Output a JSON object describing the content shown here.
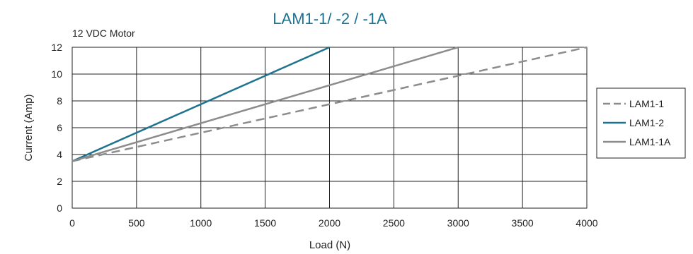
{
  "chart_data": {
    "type": "line",
    "title": "LAM1-1/ -2 / -1A",
    "subtitle": "12 VDC Motor",
    "xlabel": "Load (N)",
    "ylabel": "Current (Amp)",
    "xlim": [
      0,
      4000
    ],
    "ylim": [
      0,
      12
    ],
    "xticks": [
      0,
      500,
      1000,
      1500,
      2000,
      2500,
      3000,
      3500,
      4000
    ],
    "yticks": [
      0,
      2,
      4,
      6,
      8,
      10,
      12
    ],
    "grid": true,
    "legend_position": "right",
    "series": [
      {
        "name": "LAM1-1",
        "color": "#8c8c8c",
        "dash": "dashed",
        "x": [
          0,
          4000
        ],
        "y": [
          3.5,
          12
        ]
      },
      {
        "name": "LAM1-2",
        "color": "#1e7391",
        "dash": "solid",
        "x": [
          0,
          2000
        ],
        "y": [
          3.5,
          12
        ]
      },
      {
        "name": "LAM1-1A",
        "color": "#8c8c8c",
        "dash": "solid",
        "x": [
          0,
          3000
        ],
        "y": [
          3.5,
          12
        ]
      }
    ]
  }
}
